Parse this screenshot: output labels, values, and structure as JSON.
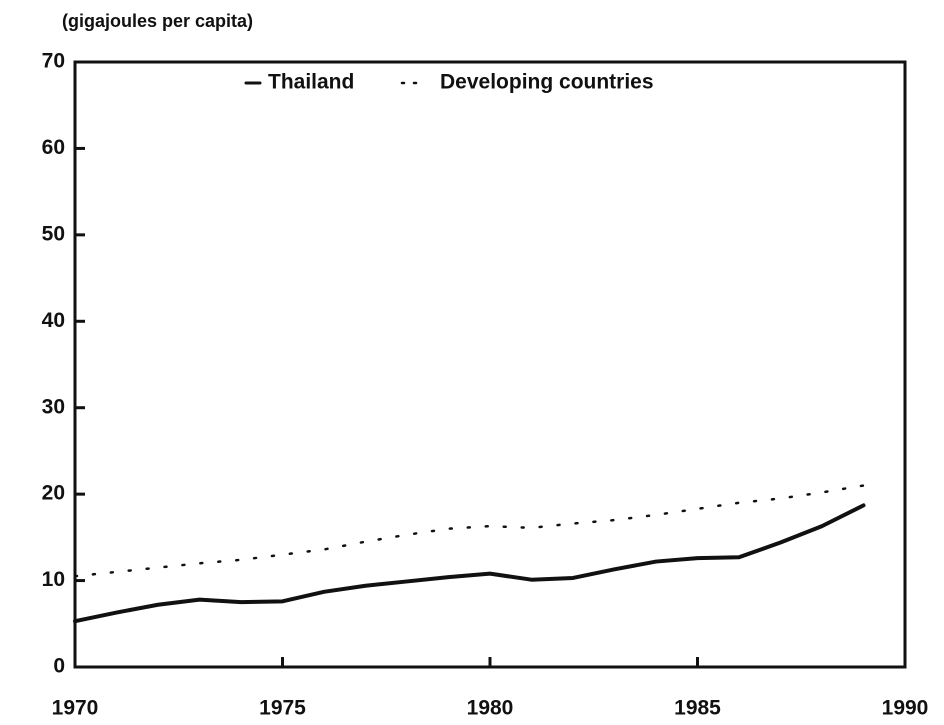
{
  "chart_data": {
    "type": "line",
    "y_label": "(gigajoules per capita)",
    "x": [
      1970,
      1971,
      1972,
      1973,
      1974,
      1975,
      1976,
      1977,
      1978,
      1979,
      1980,
      1981,
      1982,
      1983,
      1984,
      1985,
      1986,
      1987,
      1988,
      1989
    ],
    "series": [
      {
        "name": "Thailand",
        "color": "#111111",
        "style": "solid",
        "values": [
          5.3,
          6.3,
          7.2,
          7.8,
          7.5,
          7.6,
          8.7,
          9.4,
          9.9,
          10.4,
          10.8,
          10.1,
          10.3,
          11.3,
          12.2,
          12.6,
          12.7,
          14.4,
          16.3,
          18.7
        ]
      },
      {
        "name": "Developing countries",
        "color": "#111111",
        "style": "dotted",
        "values": [
          10.5,
          11.0,
          11.5,
          12.0,
          12.4,
          13.0,
          13.6,
          14.5,
          15.3,
          16.0,
          16.3,
          16.1,
          16.6,
          17.0,
          17.6,
          18.3,
          19.0,
          19.5,
          20.2,
          21.0
        ]
      }
    ],
    "xlim": [
      1970,
      1990
    ],
    "xticks": [
      1970,
      1975,
      1980,
      1985,
      1990
    ],
    "ylim": [
      0,
      70
    ],
    "yticks": [
      0,
      10,
      20,
      30,
      40,
      50,
      60,
      70
    ],
    "grid": false,
    "legend": "top"
  }
}
